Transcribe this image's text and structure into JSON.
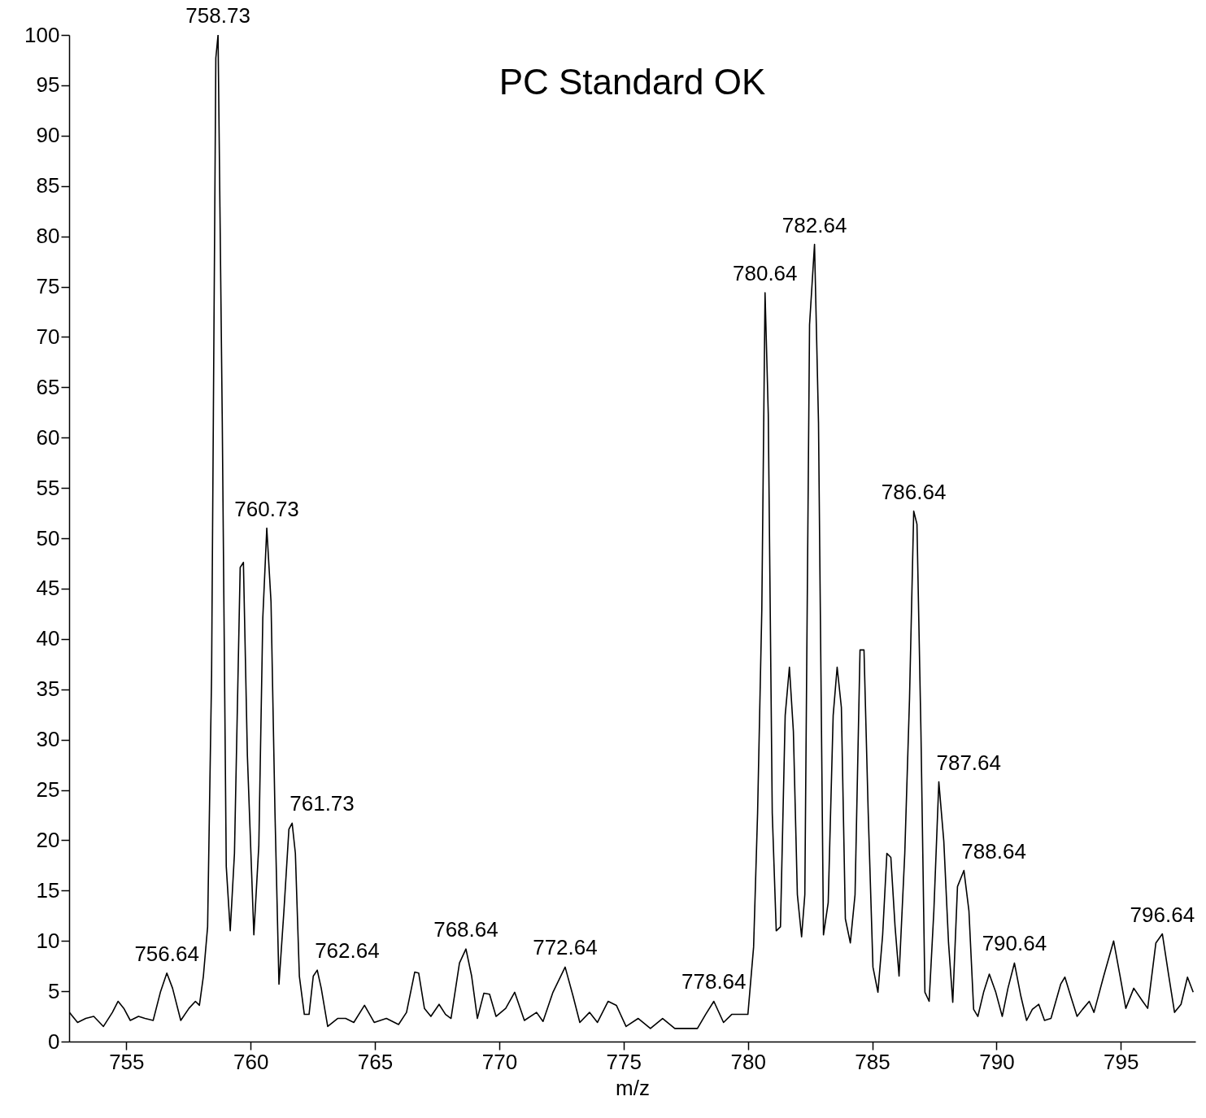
{
  "chart_data": {
    "type": "line",
    "xlabel": "m/z",
    "xlim": [
      752.7,
      798.0
    ],
    "ylim": [
      0,
      100
    ],
    "xticks": [
      755,
      760,
      765,
      770,
      775,
      780,
      785,
      790,
      795
    ],
    "yticks": [
      0,
      5,
      10,
      15,
      20,
      25,
      30,
      35,
      40,
      45,
      50,
      55,
      60,
      65,
      70,
      75,
      80,
      85,
      90,
      95,
      100
    ],
    "grid": false,
    "series": [
      {
        "color": "#000000",
        "x": [
          752.71,
          753.04,
          753.37,
          753.69,
          754.08,
          754.44,
          754.67,
          754.9,
          755.16,
          755.49,
          755.75,
          756.08,
          756.37,
          756.63,
          756.86,
          757.19,
          757.52,
          757.78,
          757.94,
          758.1,
          758.27,
          758.43,
          758.6,
          758.69,
          758.86,
          759.02,
          759.18,
          759.35,
          759.58,
          759.71,
          759.87,
          760.13,
          760.33,
          760.49,
          760.65,
          760.82,
          760.98,
          761.14,
          761.34,
          761.54,
          761.67,
          761.8,
          761.96,
          762.16,
          762.35,
          762.52,
          762.68,
          762.84,
          763.1,
          763.5,
          763.82,
          764.15,
          764.58,
          764.97,
          765.46,
          765.95,
          766.27,
          766.6,
          766.76,
          766.99,
          767.25,
          767.58,
          767.84,
          768.06,
          768.4,
          768.66,
          768.89,
          769.12,
          769.38,
          769.61,
          769.87,
          770.26,
          770.62,
          771.01,
          771.5,
          771.76,
          772.16,
          772.65,
          772.97,
          773.24,
          773.63,
          773.95,
          774.38,
          774.71,
          775.1,
          775.59,
          776.08,
          776.57,
          777.06,
          777.55,
          777.97,
          778.3,
          778.63,
          779.02,
          779.35,
          779.67,
          780.0,
          780.23,
          780.39,
          780.56,
          780.69,
          780.82,
          780.98,
          781.14,
          781.31,
          781.5,
          781.67,
          781.83,
          781.99,
          782.16,
          782.29,
          782.48,
          782.68,
          782.84,
          783.04,
          783.23,
          783.43,
          783.59,
          783.76,
          783.92,
          784.12,
          784.31,
          784.51,
          784.67,
          784.84,
          785.03,
          785.23,
          785.42,
          785.59,
          785.75,
          785.92,
          786.08,
          786.31,
          786.5,
          786.67,
          786.8,
          786.96,
          787.12,
          787.29,
          787.48,
          787.68,
          787.88,
          788.07,
          788.24,
          788.43,
          788.69,
          788.89,
          789.08,
          789.25,
          789.48,
          789.71,
          789.97,
          790.23,
          790.46,
          790.72,
          790.98,
          791.21,
          791.44,
          791.7,
          791.93,
          792.19,
          792.58,
          792.75,
          793.01,
          793.24,
          793.46,
          793.73,
          793.92,
          794.31,
          794.71,
          794.97,
          795.2,
          795.52,
          795.85,
          796.08,
          796.41,
          796.67,
          796.93,
          797.16,
          797.42,
          797.68,
          797.91
        ],
        "values": [
          2.9,
          1.9,
          2.3,
          2.5,
          1.5,
          2.9,
          4.0,
          3.3,
          2.1,
          2.5,
          2.3,
          2.1,
          4.9,
          6.8,
          5.3,
          2.1,
          3.3,
          4.0,
          3.6,
          6.5,
          11.4,
          36.4,
          97.7,
          100,
          61.5,
          17.4,
          11.0,
          18.7,
          47.1,
          47.6,
          28.4,
          10.6,
          19.5,
          42.1,
          51.0,
          43.7,
          22.7,
          5.7,
          13.0,
          21.1,
          21.7,
          18.7,
          6.5,
          2.7,
          2.7,
          6.5,
          7.1,
          5.3,
          1.5,
          2.3,
          2.3,
          1.9,
          3.6,
          1.9,
          2.3,
          1.7,
          2.9,
          6.9,
          6.8,
          3.3,
          2.5,
          3.7,
          2.7,
          2.3,
          7.8,
          9.2,
          6.5,
          2.3,
          4.8,
          4.7,
          2.5,
          3.3,
          4.9,
          2.1,
          2.9,
          2.0,
          4.9,
          7.4,
          4.5,
          1.9,
          2.9,
          1.9,
          4.0,
          3.6,
          1.5,
          2.3,
          1.3,
          2.3,
          1.3,
          1.3,
          1.3,
          2.7,
          4.0,
          1.9,
          2.7,
          2.7,
          2.7,
          9.4,
          22.7,
          42.9,
          74.4,
          62.3,
          22.7,
          11.0,
          11.4,
          32.4,
          37.2,
          30.8,
          14.6,
          10.4,
          14.6,
          71.2,
          79.2,
          61.5,
          10.6,
          13.8,
          32.4,
          37.2,
          33.2,
          12.2,
          9.8,
          14.6,
          38.9,
          38.9,
          22.7,
          7.4,
          4.9,
          10.6,
          18.7,
          18.3,
          11.4,
          6.5,
          18.7,
          34.0,
          52.7,
          51.4,
          30.8,
          4.9,
          4.0,
          13.0,
          25.8,
          19.9,
          9.8,
          3.9,
          15.4,
          17.0,
          13.0,
          3.2,
          2.5,
          4.9,
          6.7,
          4.9,
          2.5,
          5.3,
          7.8,
          4.5,
          2.1,
          3.2,
          3.7,
          2.1,
          2.3,
          5.7,
          6.4,
          4.3,
          2.5,
          3.2,
          4.0,
          2.9,
          6.5,
          10.0,
          6.5,
          3.3,
          5.3,
          4.1,
          3.3,
          9.8,
          10.7,
          6.5,
          2.9,
          3.7,
          6.4,
          4.9
        ]
      }
    ],
    "annotations": [
      "PC Standard OK",
      {
        "text": "756.64",
        "x": 756.63,
        "y": 6.8
      },
      {
        "text": "758.73",
        "x": 758.69,
        "y": 100
      },
      {
        "text": "760.73",
        "x": 760.65,
        "y": 51.0
      },
      {
        "text": "761.73",
        "x": 761.67,
        "y": 21.7
      },
      {
        "text": "762.64",
        "x": 762.68,
        "y": 7.1
      },
      {
        "text": "768.64",
        "x": 768.66,
        "y": 9.2
      },
      {
        "text": "772.64",
        "x": 772.65,
        "y": 7.4
      },
      {
        "text": "778.64",
        "x": 778.63,
        "y": 4.0
      },
      {
        "text": "780.64",
        "x": 780.69,
        "y": 74.4
      },
      {
        "text": "782.64",
        "x": 782.68,
        "y": 79.2
      },
      {
        "text": "786.64",
        "x": 786.67,
        "y": 52.7
      },
      {
        "text": "787.64",
        "x": 787.68,
        "y": 25.8
      },
      {
        "text": "788.64",
        "x": 788.69,
        "y": 17.0
      },
      {
        "text": "790.64",
        "x": 790.72,
        "y": 7.8
      },
      {
        "text": "796.64",
        "x": 796.67,
        "y": 10.7
      }
    ]
  }
}
